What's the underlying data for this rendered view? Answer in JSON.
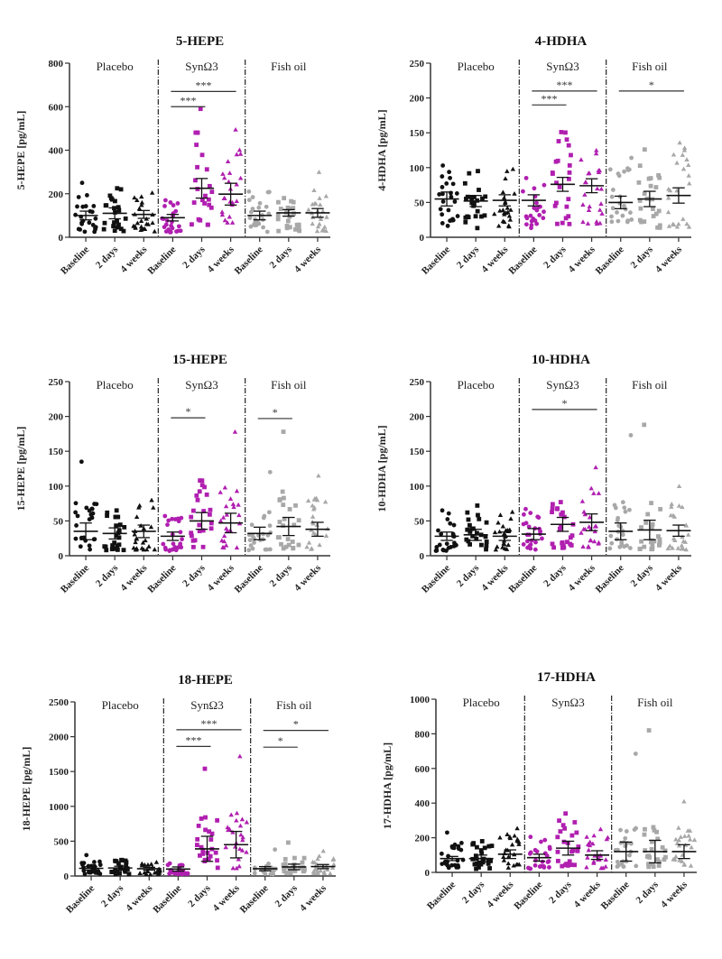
{
  "colors": {
    "placebo": "#111111",
    "synomega3": "#b01fb0",
    "fishoil": "#a8a8a8",
    "axis": "#333333"
  },
  "groups": [
    "Placebo",
    "SynΩ3",
    "Fish oil"
  ],
  "timepoints": [
    "Baseline",
    "2 days",
    "4 weeks"
  ],
  "chart_data": [
    {
      "type": "scatter",
      "title": "5-HEPE",
      "ylabel": "5-HEPE [pg/mL]",
      "ylim": [
        0,
        800
      ],
      "yticks": [
        0,
        200,
        400,
        600,
        800
      ],
      "means": [
        [
          100,
          110,
          105
        ],
        [
          90,
          225,
          198
        ],
        [
          100,
          112,
          112
        ]
      ],
      "sem": [
        [
          20,
          25,
          18
        ],
        [
          15,
          45,
          50
        ],
        [
          20,
          15,
          20
        ]
      ],
      "max_points": [
        [
          250,
          225,
          205
        ],
        [
          170,
          590,
          495
        ],
        [
          210,
          180,
          300
        ]
      ],
      "significance": [
        {
          "group": 1,
          "from": 0,
          "to": 1,
          "label": "***",
          "level": 600
        },
        {
          "group": 1,
          "from": 0,
          "to": 2,
          "label": "***",
          "level": 670
        }
      ]
    },
    {
      "type": "scatter",
      "title": "4-HDHA",
      "ylabel": "4-HDHA [pg/mL]",
      "ylim": [
        0,
        250
      ],
      "yticks": [
        0,
        50,
        100,
        150,
        200,
        250
      ],
      "means": [
        [
          55,
          52,
          53
        ],
        [
          53,
          76,
          74
        ],
        [
          50,
          55,
          60
        ]
      ],
      "sem": [
        [
          10,
          8,
          8
        ],
        [
          8,
          10,
          10
        ],
        [
          9,
          11,
          11
        ]
      ],
      "max_points": [
        [
          103,
          95,
          98
        ],
        [
          85,
          151,
          125
        ],
        [
          114,
          126,
          136
        ]
      ],
      "significance": [
        {
          "group": 1,
          "from": 0,
          "to": 1,
          "label": "***",
          "level": 190
        },
        {
          "group": 1,
          "from": 0,
          "to": 2,
          "label": "***",
          "level": 210
        },
        {
          "group": 2,
          "from": 0,
          "to": 2,
          "label": "*",
          "level": 210
        }
      ]
    },
    {
      "type": "scatter",
      "title": "15-HEPE",
      "ylabel": "15-HEPE [pg/mL]",
      "ylim": [
        0,
        250
      ],
      "yticks": [
        0,
        50,
        100,
        150,
        200,
        250
      ],
      "means": [
        [
          35,
          32,
          35
        ],
        [
          28,
          50,
          47
        ],
        [
          32,
          42,
          38
        ]
      ],
      "sem": [
        [
          12,
          8,
          9
        ],
        [
          6,
          12,
          14
        ],
        [
          9,
          13,
          10
        ]
      ],
      "max_points": [
        [
          135,
          65,
          80
        ],
        [
          57,
          108,
          178
        ],
        [
          120,
          178,
          115
        ]
      ],
      "significance": [
        {
          "group": 1,
          "from": 0,
          "to": 1,
          "label": "*",
          "level": 198
        },
        {
          "group": 2,
          "from": 0,
          "to": 1,
          "label": "*",
          "level": 197
        }
      ]
    },
    {
      "type": "scatter",
      "title": "10-HDHA",
      "ylabel": "10-HDHA [pg/mL]",
      "ylim": [
        0,
        250
      ],
      "yticks": [
        0,
        50,
        100,
        150,
        200,
        250
      ],
      "means": [
        [
          28,
          30,
          28
        ],
        [
          31,
          45,
          48
        ],
        [
          35,
          37,
          36
        ]
      ],
      "sem": [
        [
          6,
          8,
          6
        ],
        [
          8,
          10,
          12
        ],
        [
          12,
          14,
          8
        ]
      ],
      "max_points": [
        [
          65,
          72,
          63
        ],
        [
          67,
          77,
          127
        ],
        [
          173,
          188,
          100
        ]
      ],
      "significance": [
        {
          "group": 1,
          "from": 0,
          "to": 2,
          "label": "*",
          "level": 210
        }
      ]
    },
    {
      "type": "scatter",
      "title": "18-HEPE",
      "ylabel": "18-HEPE [pg/mL]",
      "ylim": [
        0,
        2500
      ],
      "yticks": [
        0,
        500,
        1000,
        1500,
        2000,
        2500
      ],
      "means": [
        [
          110,
          115,
          105
        ],
        [
          100,
          390,
          450
        ],
        [
          105,
          130,
          135
        ]
      ],
      "sem": [
        [
          25,
          25,
          20
        ],
        [
          30,
          180,
          190
        ],
        [
          30,
          40,
          30
        ]
      ],
      "max_points": [
        [
          300,
          230,
          200
        ],
        [
          180,
          1540,
          1720
        ],
        [
          380,
          480,
          360
        ]
      ],
      "significance": [
        {
          "group": 1,
          "from": 0,
          "to": 1,
          "label": "***",
          "level": 1860
        },
        {
          "group": 1,
          "from": 0,
          "to": 2,
          "label": "***",
          "level": 2100
        },
        {
          "group": 2,
          "from": 0,
          "to": 1,
          "label": "*",
          "level": 1850
        },
        {
          "group": 2,
          "from": 0,
          "to": 2,
          "label": "*",
          "level": 2090
        }
      ]
    },
    {
      "type": "scatter",
      "title": "17-HDHA",
      "ylabel": "17-HDHA [pg/mL]",
      "ylim": [
        0,
        1000
      ],
      "yticks": [
        0,
        200,
        400,
        600,
        800,
        1000
      ],
      "means": [
        [
          80,
          80,
          105
        ],
        [
          85,
          140,
          100
        ],
        [
          120,
          120,
          120
        ]
      ],
      "sem": [
        [
          12,
          20,
          25
        ],
        [
          20,
          40,
          25
        ],
        [
          55,
          65,
          40
        ]
      ],
      "max_points": [
        [
          230,
          180,
          255
        ],
        [
          205,
          340,
          250
        ],
        [
          685,
          820,
          410
        ]
      ],
      "significance": []
    }
  ]
}
